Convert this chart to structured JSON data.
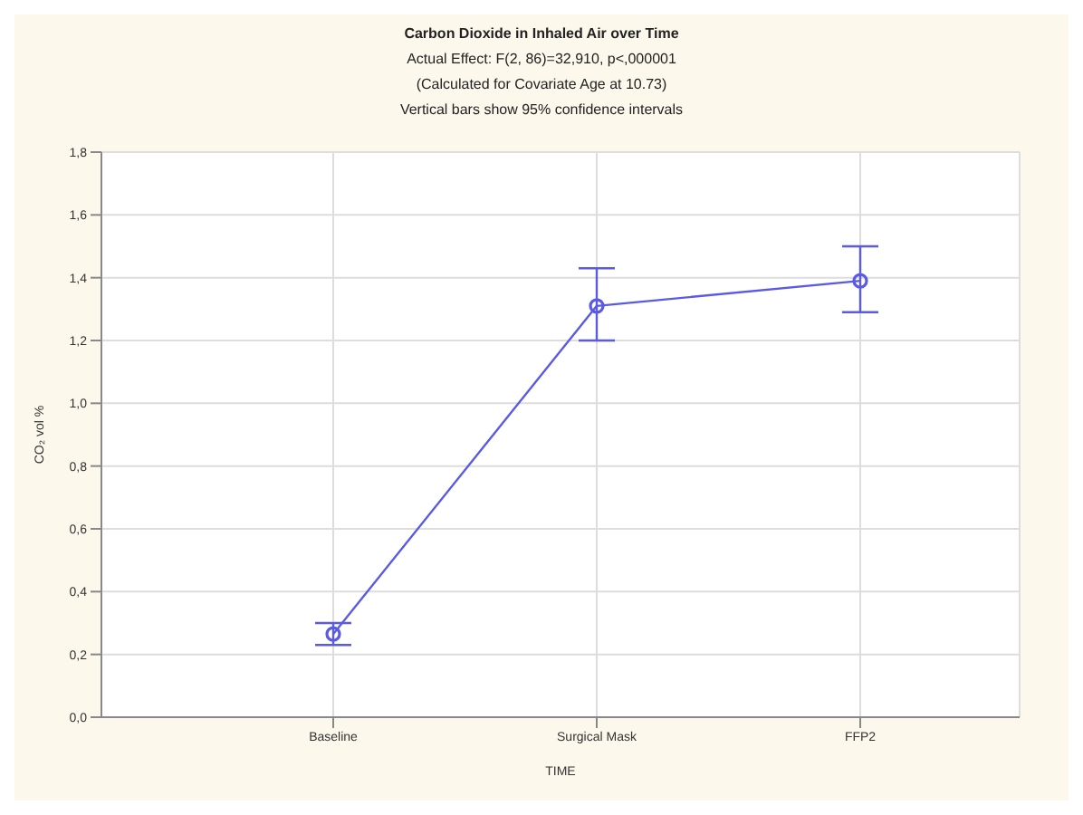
{
  "chart_data": {
    "type": "line",
    "title": "Carbon Dioxide in Inhaled Air over Time",
    "subtitle": "Actual Effect: F(2, 86)=32,910, p<,000001",
    "annotations": [
      "(Calculated for Covariate Age at 10.73)",
      "Vertical bars show 95% confidence intervals"
    ],
    "xlabel": "TIME",
    "ylabel": "CO₂ vol %",
    "categories": [
      "Baseline",
      "Surgical Mask",
      "FFP2"
    ],
    "series": [
      {
        "color": "#5a5ae6",
        "values": [
          0.265,
          1.31,
          1.39
        ],
        "errors": [
          [
            0.23,
            0.3
          ],
          [
            1.2,
            1.43
          ],
          [
            1.29,
            1.5
          ]
        ]
      }
    ],
    "ylim": [
      0,
      1.8
    ],
    "yticks": [
      {
        "value": 0,
        "label": "0,0"
      },
      {
        "value": 0.2,
        "label": "0,2"
      },
      {
        "value": 0.4,
        "label": "0,4"
      },
      {
        "value": 0.6,
        "label": "0,6"
      },
      {
        "value": 0.8,
        "label": "0,8"
      },
      {
        "value": 1,
        "label": "1,0"
      },
      {
        "value": 1.2,
        "label": "1,2"
      },
      {
        "value": 1.4,
        "label": "1,4"
      },
      {
        "value": 1.6,
        "label": "1,6"
      },
      {
        "value": 1.8,
        "label": "1,8"
      }
    ],
    "grid": true,
    "marker": "circle",
    "line_style": "solid"
  }
}
